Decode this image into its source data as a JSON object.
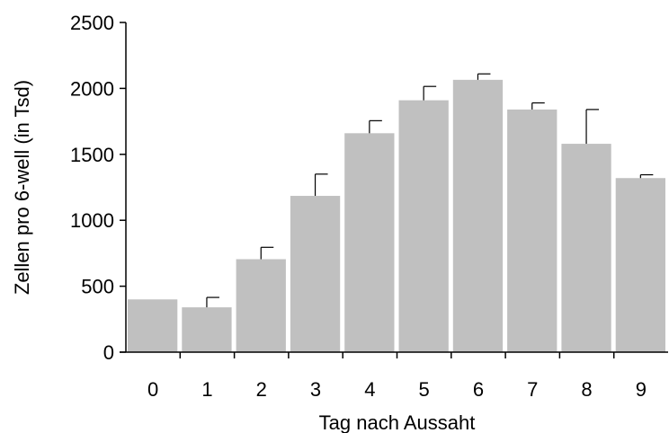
{
  "chart_data": {
    "type": "bar",
    "title": "",
    "xlabel": "Tag nach Aussaht",
    "ylabel": "Zellen pro 6-well (in Tsd)",
    "categories": [
      "0",
      "1",
      "2",
      "3",
      "4",
      "5",
      "6",
      "7",
      "8",
      "9"
    ],
    "values": [
      400,
      340,
      705,
      1185,
      1660,
      1910,
      2065,
      1840,
      1580,
      1320
    ],
    "error_plus": [
      0,
      75,
      90,
      165,
      95,
      105,
      45,
      50,
      260,
      25
    ],
    "ylim": [
      0,
      2500
    ],
    "yticks": [
      0,
      500,
      1000,
      1500,
      2000,
      2500
    ],
    "ytick_labels": [
      "0",
      "500",
      "1000",
      "1500",
      "2000",
      "2500"
    ],
    "grid": false,
    "legend": "none",
    "bar_color": "#c0c0c0",
    "axis_color": "#000000"
  }
}
